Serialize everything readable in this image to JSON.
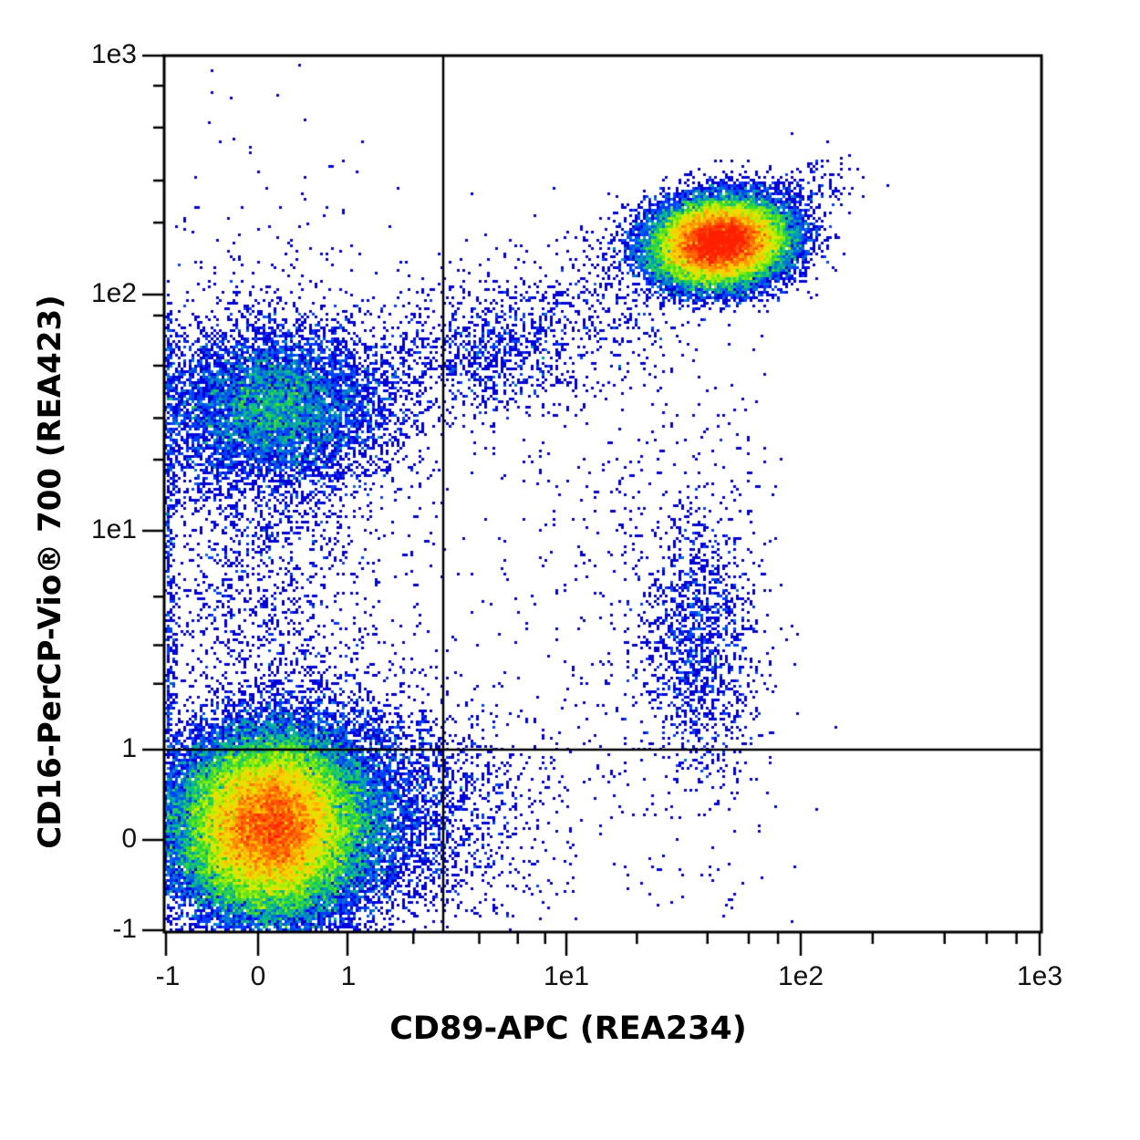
{
  "chart_data": {
    "type": "scatter",
    "subtype": "flow-cytometry-density-dot-plot",
    "title": "",
    "xlabel": "CD89-APC (REA234)",
    "ylabel": "CD16-PerCP-Vio® 700 (REA423)",
    "x_scale": "biexponential (linear -1..1, log 1..1e3)",
    "y_scale": "biexponential (linear -1..1, log 1..1e3)",
    "xlim": [
      -1,
      1000
    ],
    "ylim": [
      -1,
      1000
    ],
    "x_ticks": [
      {
        "label": "-1",
        "value": -1
      },
      {
        "label": "0",
        "value": 0
      },
      {
        "label": "1",
        "value": 1
      },
      {
        "label": "1e1",
        "value": 10
      },
      {
        "label": "1e2",
        "value": 100
      },
      {
        "label": "1e3",
        "value": 1000
      }
    ],
    "y_ticks": [
      {
        "label": "1e3",
        "value": 1000
      },
      {
        "label": "1e2",
        "value": 100
      },
      {
        "label": "1e1",
        "value": 10
      },
      {
        "label": "1",
        "value": 1
      },
      {
        "label": "0",
        "value": 0
      },
      {
        "label": "-1",
        "value": -1
      }
    ],
    "grid": false,
    "legend": null,
    "colormap": [
      "#0000d8",
      "#0040ff",
      "#00b4a0",
      "#40e020",
      "#c8f000",
      "#ffd000",
      "#ff7000",
      "#ff2000"
    ],
    "quadrant_gates": {
      "x_threshold": 2.6,
      "y_threshold": 1,
      "line_color": "#000000"
    },
    "populations": [
      {
        "name": "CD89- CD16- (lower left)",
        "quadrant": "Q3",
        "center_x": 0.05,
        "center_y": 0.1,
        "spread_x": 0.35,
        "spread_y": 0.35,
        "relative_count": 0.55,
        "peak_color": "green"
      },
      {
        "name": "CD89- CD16+ (upper left)",
        "quadrant": "Q1",
        "center_x": 0.1,
        "center_y": 35,
        "spread_x": 0.5,
        "spread_y_log": 0.22,
        "relative_count": 0.14,
        "peak_color": "blue"
      },
      {
        "name": "CD89+ CD16+ (upper right, neutrophils)",
        "quadrant": "Q2",
        "center_x": 45,
        "center_y": 165,
        "spread_x_log": 0.13,
        "spread_y_log": 0.11,
        "relative_count": 0.24,
        "peak_color": "red"
      },
      {
        "name": "CD89+ CD16 dim (right, monocytes)",
        "quadrant": "Q2/Q4",
        "center_x": 35,
        "center_y": 3,
        "spread_x_log": 0.12,
        "spread_y_log": 0.3,
        "relative_count": 0.03,
        "peak_color": "blue"
      },
      {
        "name": "Bridge events (upper)",
        "quadrant": "Q1/Q2",
        "center_x": 4,
        "center_y": 50,
        "spread_x_log": 0.35,
        "spread_y_log": 0.2,
        "relative_count": 0.02,
        "peak_color": "blue"
      },
      {
        "name": "Vertical smear (left)",
        "quadrant": "Q1",
        "center_x": 0.2,
        "center_y": 4,
        "spread_x": 0.4,
        "spread_y_log": 0.45,
        "relative_count": 0.02,
        "peak_color": "blue"
      }
    ]
  },
  "axes": {
    "x_title": "CD89-APC (REA234)",
    "y_title": "CD16-PerCP-Vio® 700 (REA423)"
  }
}
